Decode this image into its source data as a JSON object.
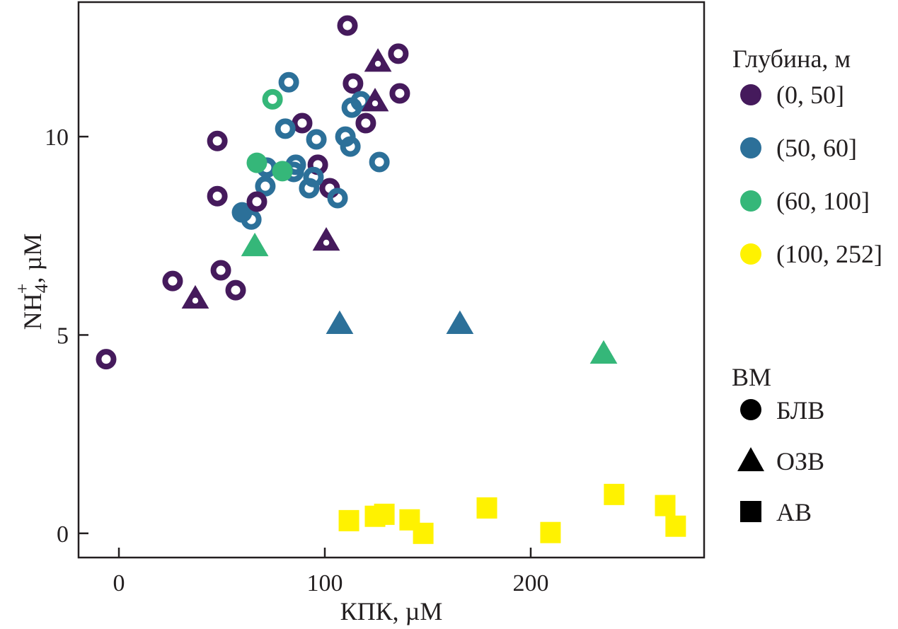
{
  "chart_data": {
    "type": "scatter",
    "title": "",
    "xlabel": "КПК, µM",
    "ylabel_main": "NH",
    "ylabel_sub": "4",
    "ylabel_sup": "+",
    "ylabel_unit": ", µM",
    "xlim": [
      -19.6,
      284.2
    ],
    "ylim": [
      -0.61,
      13.39
    ],
    "xticks": [
      0,
      100,
      200
    ],
    "yticks": [
      0,
      5,
      10
    ],
    "xtick_labels": [
      "0",
      "100",
      "200"
    ],
    "ytick_labels": [
      "0",
      "5",
      "10"
    ],
    "grid": false,
    "legend_placement": "right",
    "color_legend": {
      "title": "Глубина, м",
      "entries": [
        {
          "key": "d0_50",
          "label": "(0, 50]",
          "color": "#451a5c"
        },
        {
          "key": "d50_60",
          "label": "(50, 60]",
          "color": "#2c7099"
        },
        {
          "key": "d60_100",
          "label": "(60, 100]",
          "color": "#35b779"
        },
        {
          "key": "d100_252",
          "label": "(100, 252]",
          "color": "#fff200"
        }
      ]
    },
    "shape_legend": {
      "title": "ВМ",
      "entries": [
        {
          "key": "blv",
          "label": "БЛВ",
          "shape": "circle"
        },
        {
          "key": "ozv",
          "label": "ОЗВ",
          "shape": "triangle"
        },
        {
          "key": "av",
          "label": "АВ",
          "shape": "square"
        }
      ]
    },
    "points": [
      {
        "x": -6.2,
        "y": 4.39,
        "depth": "d0_50",
        "water": "blv"
      },
      {
        "x": 26.1,
        "y": 6.36,
        "depth": "d0_50",
        "water": "blv"
      },
      {
        "x": 49.5,
        "y": 6.63,
        "depth": "d0_50",
        "water": "blv"
      },
      {
        "x": 56.7,
        "y": 6.13,
        "depth": "d0_50",
        "water": "blv"
      },
      {
        "x": 47.8,
        "y": 8.5,
        "depth": "d0_50",
        "water": "blv"
      },
      {
        "x": 47.8,
        "y": 9.89,
        "depth": "d0_50",
        "water": "blv"
      },
      {
        "x": 89.0,
        "y": 10.34,
        "depth": "d0_50",
        "water": "blv"
      },
      {
        "x": 96.6,
        "y": 9.29,
        "depth": "d0_50",
        "water": "blv"
      },
      {
        "x": 102.4,
        "y": 8.7,
        "depth": "d0_50",
        "water": "blv"
      },
      {
        "x": 111.0,
        "y": 12.8,
        "depth": "d0_50",
        "water": "blv"
      },
      {
        "x": 113.7,
        "y": 11.34,
        "depth": "d0_50",
        "water": "blv"
      },
      {
        "x": 119.9,
        "y": 10.34,
        "depth": "d0_50",
        "water": "blv"
      },
      {
        "x": 135.7,
        "y": 12.09,
        "depth": "d0_50",
        "water": "blv"
      },
      {
        "x": 136.4,
        "y": 11.09,
        "depth": "d0_50",
        "water": "blv"
      },
      {
        "x": 59.8,
        "y": 8.09,
        "depth": "d50_60",
        "water": "blv",
        "filled": true
      },
      {
        "x": 64.3,
        "y": 7.91,
        "depth": "d50_60",
        "water": "blv"
      },
      {
        "x": 71.1,
        "y": 8.75,
        "depth": "d50_60",
        "water": "blv"
      },
      {
        "x": 71.8,
        "y": 9.22,
        "depth": "d50_60",
        "water": "blv"
      },
      {
        "x": 80.8,
        "y": 10.2,
        "depth": "d50_60",
        "water": "blv"
      },
      {
        "x": 82.5,
        "y": 11.37,
        "depth": "d50_60",
        "water": "blv"
      },
      {
        "x": 85.9,
        "y": 9.29,
        "depth": "d50_60",
        "water": "blv"
      },
      {
        "x": 84.9,
        "y": 9.11,
        "depth": "d50_60",
        "water": "blv"
      },
      {
        "x": 92.4,
        "y": 8.7,
        "depth": "d50_60",
        "water": "blv"
      },
      {
        "x": 94.5,
        "y": 8.98,
        "depth": "d50_60",
        "water": "blv"
      },
      {
        "x": 95.9,
        "y": 9.93,
        "depth": "d50_60",
        "water": "blv"
      },
      {
        "x": 106.2,
        "y": 8.45,
        "depth": "d50_60",
        "water": "blv"
      },
      {
        "x": 110.0,
        "y": 10.0,
        "depth": "d50_60",
        "water": "blv"
      },
      {
        "x": 112.4,
        "y": 9.75,
        "depth": "d50_60",
        "water": "blv"
      },
      {
        "x": 113.1,
        "y": 10.73,
        "depth": "d50_60",
        "water": "blv"
      },
      {
        "x": 117.5,
        "y": 10.89,
        "depth": "d50_60",
        "water": "blv"
      },
      {
        "x": 126.5,
        "y": 9.36,
        "depth": "d50_60",
        "water": "blv"
      },
      {
        "x": 74.6,
        "y": 10.94,
        "depth": "d60_100",
        "water": "blv"
      },
      {
        "x": 67.0,
        "y": 9.34,
        "depth": "d60_100",
        "water": "blv",
        "filled": true
      },
      {
        "x": 79.4,
        "y": 9.13,
        "depth": "d60_100",
        "water": "blv",
        "filled": true
      },
      {
        "x": 67.0,
        "y": 8.36,
        "depth": "d0_50",
        "water": "blv"
      },
      {
        "x": 37.1,
        "y": 5.92,
        "depth": "d0_50",
        "water": "ozv"
      },
      {
        "x": 100.7,
        "y": 7.38,
        "depth": "d0_50",
        "water": "ozv"
      },
      {
        "x": 124.4,
        "y": 10.89,
        "depth": "d0_50",
        "water": "ozv"
      },
      {
        "x": 125.8,
        "y": 11.89,
        "depth": "d0_50",
        "water": "ozv"
      },
      {
        "x": 107.2,
        "y": 5.28,
        "depth": "d50_60",
        "water": "ozv"
      },
      {
        "x": 165.6,
        "y": 5.28,
        "depth": "d50_60",
        "water": "ozv"
      },
      {
        "x": 66.0,
        "y": 7.24,
        "depth": "d60_100",
        "water": "ozv"
      },
      {
        "x": 235.4,
        "y": 4.53,
        "depth": "d60_100",
        "water": "ozv"
      },
      {
        "x": 111.7,
        "y": 0.32,
        "depth": "d100_252",
        "water": "av"
      },
      {
        "x": 124.4,
        "y": 0.43,
        "depth": "d100_252",
        "water": "av"
      },
      {
        "x": 128.9,
        "y": 0.48,
        "depth": "d100_252",
        "water": "av"
      },
      {
        "x": 141.2,
        "y": 0.34,
        "depth": "d100_252",
        "water": "av"
      },
      {
        "x": 147.8,
        "y": 0.0,
        "depth": "d100_252",
        "water": "av"
      },
      {
        "x": 178.7,
        "y": 0.64,
        "depth": "d100_252",
        "water": "av"
      },
      {
        "x": 209.6,
        "y": 0.02,
        "depth": "d100_252",
        "water": "av"
      },
      {
        "x": 240.5,
        "y": 0.98,
        "depth": "d100_252",
        "water": "av"
      },
      {
        "x": 265.3,
        "y": 0.7,
        "depth": "d100_252",
        "water": "av"
      },
      {
        "x": 270.4,
        "y": 0.18,
        "depth": "d100_252",
        "water": "av"
      }
    ]
  }
}
